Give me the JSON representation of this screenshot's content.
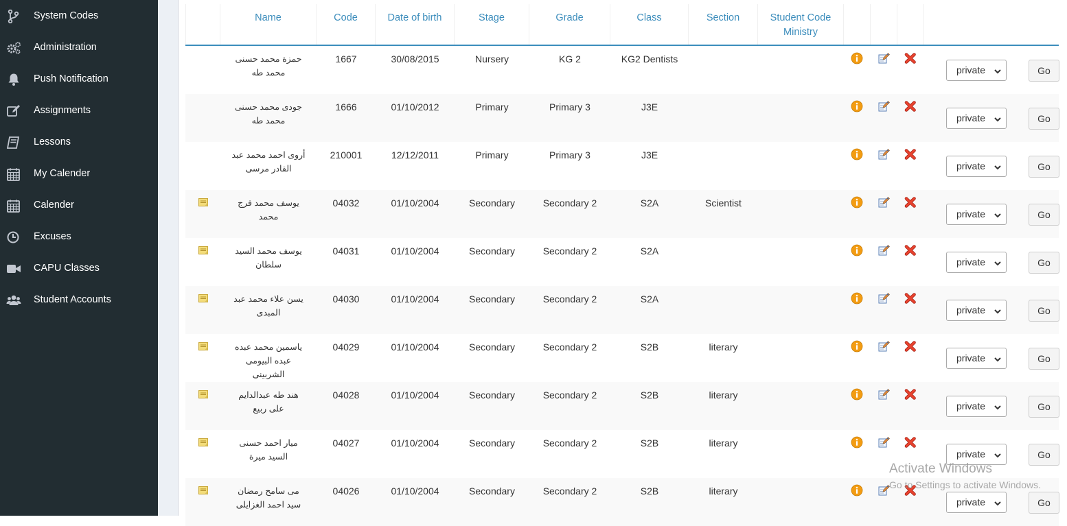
{
  "sidebar": {
    "items": [
      {
        "label": "System Codes",
        "icon": "code-fork-icon"
      },
      {
        "label": "Administration",
        "icon": "cogs-icon"
      },
      {
        "label": "Push Notification",
        "icon": "bell-icon"
      },
      {
        "label": "Assignments",
        "icon": "edit-icon"
      },
      {
        "label": "Lessons",
        "icon": "book-icon"
      },
      {
        "label": "My Calender",
        "icon": "calendar-icon"
      },
      {
        "label": "Calender",
        "icon": "calendar-icon"
      },
      {
        "label": "Excuses",
        "icon": "clock-icon"
      },
      {
        "label": "CAPU Classes",
        "icon": "video-camera-icon"
      },
      {
        "label": "Student Accounts",
        "icon": "users-icon"
      }
    ]
  },
  "table": {
    "headers": {
      "name": "Name",
      "code": "Code",
      "dob": "Date of birth",
      "stage": "Stage",
      "grade": "Grade",
      "class": "Class",
      "section": "Section",
      "ministry": "Student Code Ministry"
    },
    "rows": [
      {
        "has_note": false,
        "name": "حمزة محمد حسنى محمد طه",
        "code": "1667",
        "dob": "30/08/2015",
        "stage": "Nursery",
        "grade": "KG 2",
        "class": "KG2 Dentists",
        "section": "",
        "ministry": "",
        "type": "private",
        "go": "Go"
      },
      {
        "has_note": false,
        "name": "جودى محمد حسنى محمد طه",
        "code": "1666",
        "dob": "01/10/2012",
        "stage": "Primary",
        "grade": "Primary 3",
        "class": "J3E",
        "section": "",
        "ministry": "",
        "type": "private",
        "go": "Go"
      },
      {
        "has_note": false,
        "name": "أروى احمد محمد عبد القادر مرسى",
        "code": "210001",
        "dob": "12/12/2011",
        "stage": "Primary",
        "grade": "Primary 3",
        "class": "J3E",
        "section": "",
        "ministry": "",
        "type": "private",
        "go": "Go"
      },
      {
        "has_note": true,
        "name": "يوسف محمد فرج محمد",
        "code": "04032",
        "dob": "01/10/2004",
        "stage": "Secondary",
        "grade": "Secondary 2",
        "class": "S2A",
        "section": "Scientist",
        "ministry": "",
        "type": "private",
        "go": "Go"
      },
      {
        "has_note": true,
        "name": "يوسف محمد السيد سلطان",
        "code": "04031",
        "dob": "01/10/2004",
        "stage": "Secondary",
        "grade": "Secondary 2",
        "class": "S2A",
        "section": "",
        "ministry": "",
        "type": "private",
        "go": "Go"
      },
      {
        "has_note": true,
        "name": "يسن علاء محمد عبد المبدى",
        "code": "04030",
        "dob": "01/10/2004",
        "stage": "Secondary",
        "grade": "Secondary 2",
        "class": "S2A",
        "section": "",
        "ministry": "",
        "type": "private",
        "go": "Go"
      },
      {
        "has_note": true,
        "name": "ياسمين محمد عبده عبده البيومى الشربينى",
        "code": "04029",
        "dob": "01/10/2004",
        "stage": "Secondary",
        "grade": "Secondary 2",
        "class": "S2B",
        "section": "literary",
        "ministry": "",
        "type": "private",
        "go": "Go"
      },
      {
        "has_note": true,
        "name": "هند طه عبدالدايم على ربيع",
        "code": "04028",
        "dob": "01/10/2004",
        "stage": "Secondary",
        "grade": "Secondary 2",
        "class": "S2B",
        "section": "literary",
        "ministry": "",
        "type": "private",
        "go": "Go"
      },
      {
        "has_note": true,
        "name": "ميار احمد حسنى السيد ميرة",
        "code": "04027",
        "dob": "01/10/2004",
        "stage": "Secondary",
        "grade": "Secondary 2",
        "class": "S2B",
        "section": "literary",
        "ministry": "",
        "type": "private",
        "go": "Go"
      },
      {
        "has_note": true,
        "name": "مى سامح رمضان سيد احمد الغزايلى",
        "code": "04026",
        "dob": "01/10/2004",
        "stage": "Secondary",
        "grade": "Secondary 2",
        "class": "S2B",
        "section": "literary",
        "ministry": "",
        "type": "private",
        "go": "Go"
      }
    ]
  },
  "watermark": {
    "title": "Activate Windows",
    "subtitle": "Go to Settings to activate Windows."
  },
  "colors": {
    "sidebar_bg": "#222d32",
    "header_text": "#3c8dbc",
    "info_icon": "#f39c12",
    "delete_icon": "#dd3b2a"
  }
}
